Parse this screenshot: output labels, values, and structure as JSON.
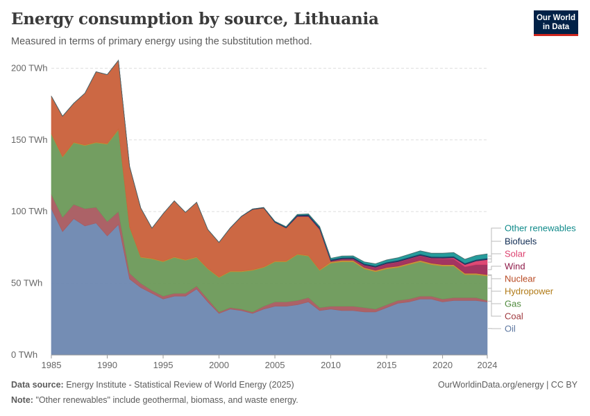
{
  "header": {
    "title": "Energy consumption by source, Lithuania",
    "subtitle": "Measured in terms of primary energy using the substitution method."
  },
  "logo": {
    "line1": "Our World",
    "line2": "in Data",
    "bg_color": "#002147",
    "accent_color": "#ce261e"
  },
  "footer": {
    "source_label": "Data source:",
    "source_text": "Energy Institute - Statistical Review of World Energy (2025)",
    "note_label": "Note:",
    "note_text": "\"Other renewables\" include geothermal, biomass, and waste energy.",
    "url": "OurWorldinData.org/energy | CC BY"
  },
  "chart_data": {
    "type": "area",
    "stacked": true,
    "x": [
      1985,
      1986,
      1987,
      1988,
      1989,
      1990,
      1991,
      1992,
      1993,
      1994,
      1995,
      1996,
      1997,
      1998,
      1999,
      2000,
      2001,
      2002,
      2003,
      2004,
      2005,
      2006,
      2007,
      2008,
      2009,
      2010,
      2011,
      2012,
      2013,
      2014,
      2015,
      2016,
      2017,
      2018,
      2019,
      2020,
      2021,
      2022,
      2023,
      2024
    ],
    "xlim": [
      1985,
      2024
    ],
    "ylim": [
      0,
      205
    ],
    "yticks": [
      0,
      50,
      100,
      150,
      200
    ],
    "ytick_labels": [
      "0 TWh",
      "50 TWh",
      "100 TWh",
      "150 TWh",
      "200 TWh"
    ],
    "xticks": [
      1985,
      1990,
      1995,
      2000,
      2005,
      2010,
      2015,
      2020,
      2024
    ],
    "xtick_labels": [
      "1985",
      "1990",
      "1995",
      "2000",
      "2005",
      "2010",
      "2015",
      "2020",
      "2024"
    ],
    "grid": "horizontal dashed",
    "legend_position": "right",
    "series": [
      {
        "name": "Oil",
        "color": "#6d87b0",
        "values": [
          102,
          86,
          95,
          90,
          92,
          83,
          91,
          53,
          47,
          43,
          39,
          41,
          41,
          46,
          37,
          29,
          32,
          31,
          29,
          32,
          34,
          34,
          35,
          37,
          31,
          32,
          31,
          31,
          30,
          30,
          33,
          36,
          37,
          39,
          39,
          37,
          38,
          38,
          38,
          37
        ]
      },
      {
        "name": "Coal",
        "color": "#a85a5f",
        "values": [
          10,
          10,
          10,
          12,
          11,
          10,
          9,
          4,
          3,
          2,
          2,
          2,
          2,
          2,
          2,
          1,
          1,
          1,
          1,
          2,
          3,
          3,
          3,
          3,
          2,
          2,
          3,
          3,
          3,
          2,
          2,
          2,
          2,
          2,
          2,
          2,
          2,
          2,
          2,
          1
        ]
      },
      {
        "name": "Gas",
        "color": "#6b9959",
        "values": [
          42,
          42,
          43,
          44,
          45,
          54,
          57,
          32,
          18,
          22,
          24,
          25,
          23,
          20,
          21,
          24,
          25,
          26,
          29,
          27,
          28,
          28,
          32,
          29,
          26,
          30,
          31,
          31,
          27,
          26,
          25,
          23,
          24,
          24,
          22,
          23,
          22,
          16,
          16,
          17
        ]
      },
      {
        "name": "Hydropower",
        "color": "#c38f32",
        "values": [
          0.5,
          0.5,
          0.5,
          0.5,
          0.5,
          0.5,
          0.5,
          0.5,
          0.5,
          0.5,
          0.5,
          0.5,
          0.5,
          0.5,
          0.5,
          0.5,
          0.5,
          0.5,
          0.5,
          0.5,
          0.5,
          0.5,
          0.5,
          0.5,
          0.5,
          1,
          1,
          1,
          1,
          1,
          1,
          1,
          1,
          1,
          1,
          1,
          1,
          1,
          1,
          1
        ]
      },
      {
        "name": "Nuclear",
        "color": "#c9603a",
        "values": [
          26,
          28,
          27,
          36,
          49,
          48,
          48,
          42,
          34,
          21,
          33,
          39,
          33,
          38,
          27,
          24,
          30,
          38,
          42,
          41,
          27,
          23,
          26,
          27,
          28,
          0,
          0,
          0,
          0,
          0,
          0,
          0,
          0,
          0,
          0,
          0,
          0,
          0,
          0,
          0
        ]
      },
      {
        "name": "Wind",
        "color": "#9e2a58",
        "values": [
          0,
          0,
          0,
          0,
          0,
          0,
          0,
          0,
          0,
          0,
          0,
          0,
          0,
          0,
          0,
          0,
          0,
          0,
          0,
          0,
          0,
          0.1,
          0.3,
          0.4,
          0.5,
          0.6,
          1,
          1,
          1.5,
          2,
          2.5,
          2.8,
          3,
          3.2,
          3.3,
          4,
          4,
          4.5,
          6,
          7
        ]
      },
      {
        "name": "Solar",
        "color": "#dc3f6d",
        "values": [
          0,
          0,
          0,
          0,
          0,
          0,
          0,
          0,
          0,
          0,
          0,
          0,
          0,
          0,
          0,
          0,
          0,
          0,
          0,
          0,
          0,
          0,
          0,
          0,
          0,
          0,
          0,
          0.1,
          0.2,
          0.2,
          0.2,
          0.2,
          0.2,
          0.2,
          0.3,
          0.5,
          0.8,
          1.5,
          2.5,
          3.5
        ]
      },
      {
        "name": "Biofuels",
        "color": "#18365e",
        "values": [
          0,
          0,
          0,
          0,
          0,
          0,
          0,
          0,
          0,
          0,
          0,
          0,
          0,
          0,
          0,
          0,
          0.1,
          0.2,
          0.3,
          0.4,
          0.5,
          0.6,
          0.8,
          1,
          1,
          1,
          1,
          1,
          1,
          1,
          1,
          1,
          1,
          1,
          1,
          1,
          1,
          1,
          1,
          1
        ]
      },
      {
        "name": "Other renewables",
        "color": "#1a9797",
        "values": [
          0,
          0,
          0,
          0,
          0,
          0,
          0,
          0,
          0,
          0,
          0,
          0,
          0,
          0,
          0,
          0,
          0,
          0,
          0,
          0,
          0.2,
          0.3,
          0.4,
          0.5,
          0.6,
          0.8,
          1,
          1,
          1.2,
          1.4,
          1.6,
          1.8,
          2,
          2.2,
          2.4,
          2.5,
          2.6,
          2.7,
          2.9,
          3
        ]
      }
    ]
  }
}
